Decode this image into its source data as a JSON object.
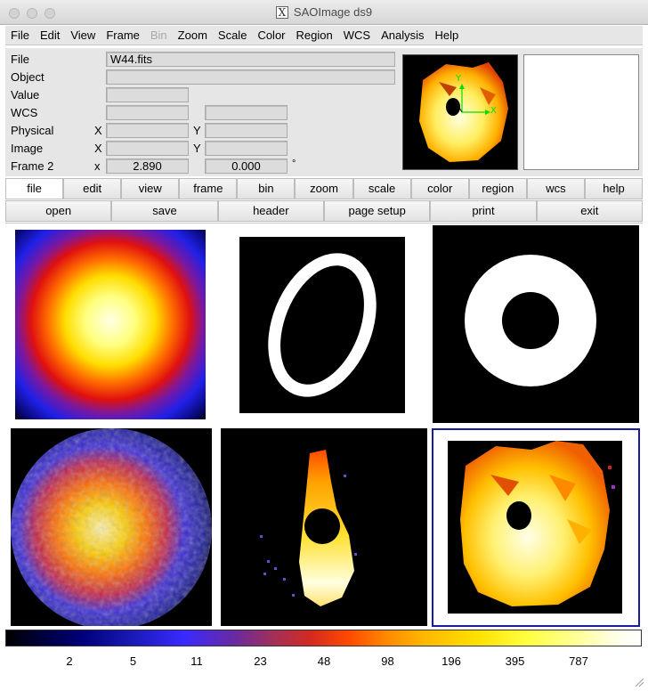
{
  "window": {
    "title": "SAOImage ds9"
  },
  "menubar": [
    "File",
    "Edit",
    "View",
    "Frame",
    "Bin",
    "Zoom",
    "Scale",
    "Color",
    "Region",
    "WCS",
    "Analysis",
    "Help"
  ],
  "disabled_menus": [
    "Bin"
  ],
  "info": {
    "file_label": "File",
    "file_value": "W44.fits",
    "object_label": "Object",
    "object_value": "",
    "value_label": "Value",
    "value_value": "",
    "wcs_label": "WCS",
    "physical_label": "Physical",
    "image_label": "Image",
    "frame_label": "Frame 2",
    "x_upper": "X",
    "y_upper": "Y",
    "x_lower": "x",
    "frame_x": "2.890",
    "frame_y": "0.000",
    "degree": "°"
  },
  "buttons_main": [
    "file",
    "edit",
    "view",
    "frame",
    "bin",
    "zoom",
    "scale",
    "color",
    "region",
    "wcs",
    "help"
  ],
  "buttons_file": [
    "open",
    "save",
    "header",
    "page setup",
    "print",
    "exit"
  ],
  "active_button": "file",
  "compass": {
    "north_label": "Y",
    "east_label": "X"
  },
  "colorbar": {
    "ticks": [
      "2",
      "5",
      "11",
      "23",
      "48",
      "98",
      "196",
      "395",
      "787"
    ]
  }
}
